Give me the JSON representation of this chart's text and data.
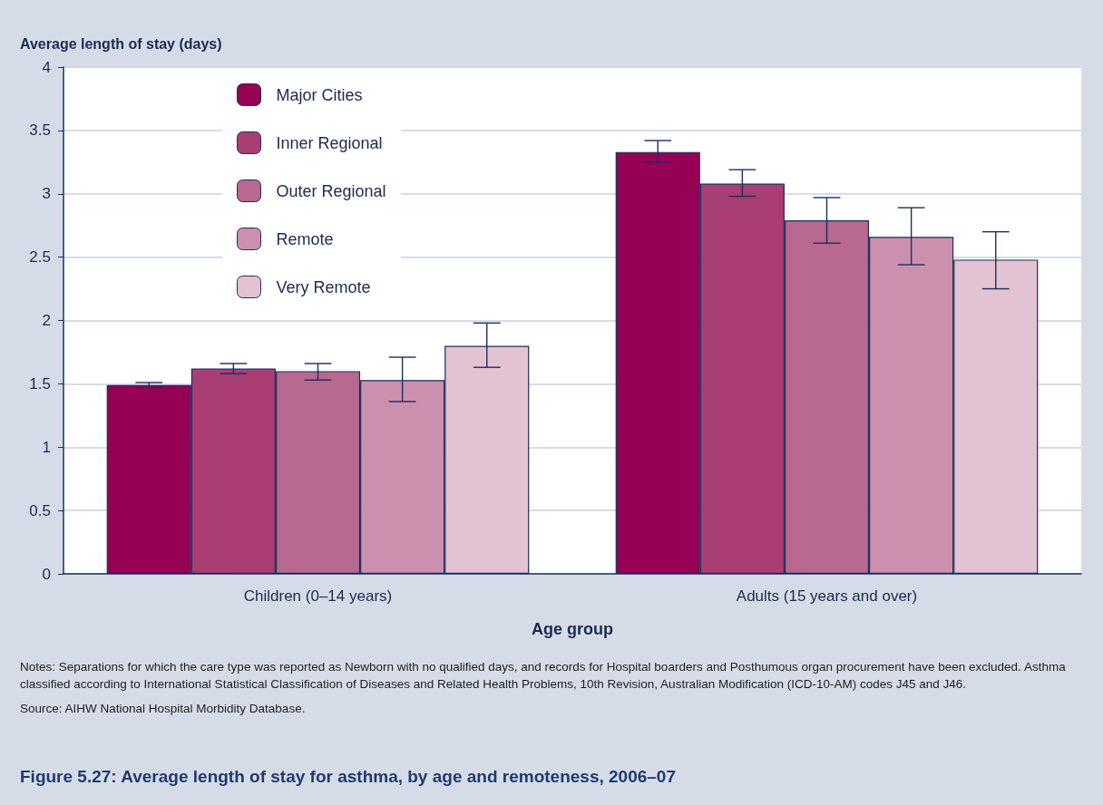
{
  "chart_data": {
    "type": "bar",
    "title": "Figure 5.27: Average length of stay for asthma, by age and remoteness, 2006–07",
    "xlabel": "Age group",
    "ylabel": "Average length of stay (days)",
    "categories": [
      "Children (0–14 years)",
      "Adults (15 years and over)"
    ],
    "series": [
      {
        "name": "Major Cities",
        "color": "#960055",
        "values": [
          1.49,
          3.33
        ],
        "errors": [
          [
            1.47,
            1.51
          ],
          [
            3.25,
            3.42
          ]
        ]
      },
      {
        "name": "Inner Regional",
        "color": "#a83e74",
        "values": [
          1.62,
          3.08
        ],
        "errors": [
          [
            1.58,
            1.66
          ],
          [
            2.98,
            3.19
          ]
        ]
      },
      {
        "name": "Outer Regional",
        "color": "#b9688f",
        "values": [
          1.6,
          2.79
        ],
        "errors": [
          [
            1.53,
            1.66
          ],
          [
            2.61,
            2.97
          ]
        ]
      },
      {
        "name": "Remote",
        "color": "#cc90ae",
        "values": [
          1.53,
          2.66
        ],
        "errors": [
          [
            1.36,
            1.71
          ],
          [
            2.44,
            2.89
          ]
        ]
      },
      {
        "name": "Very Remote",
        "color": "#e3c2d2",
        "values": [
          1.8,
          2.48
        ],
        "errors": [
          [
            1.63,
            1.98
          ],
          [
            2.25,
            2.7
          ]
        ]
      }
    ],
    "ylim": [
      0,
      4
    ],
    "yticks": [
      0,
      0.5,
      1,
      1.5,
      2,
      2.5,
      3,
      3.5,
      4
    ],
    "grid": "y",
    "legend": "top left",
    "annotations": [
      "Notes: Separations for which the care type was reported as Newborn with no qualified days, and records for Hospital boarders and Posthumous organ procurement have been excluded. Asthma classified according to International Statistical Classification of Diseases and Related Health Problems, 10th Revision, Australian Modification (ICD-10-AM) codes J45 and J46.",
      "Source: AIHW National Hospital Morbidity Database."
    ]
  }
}
